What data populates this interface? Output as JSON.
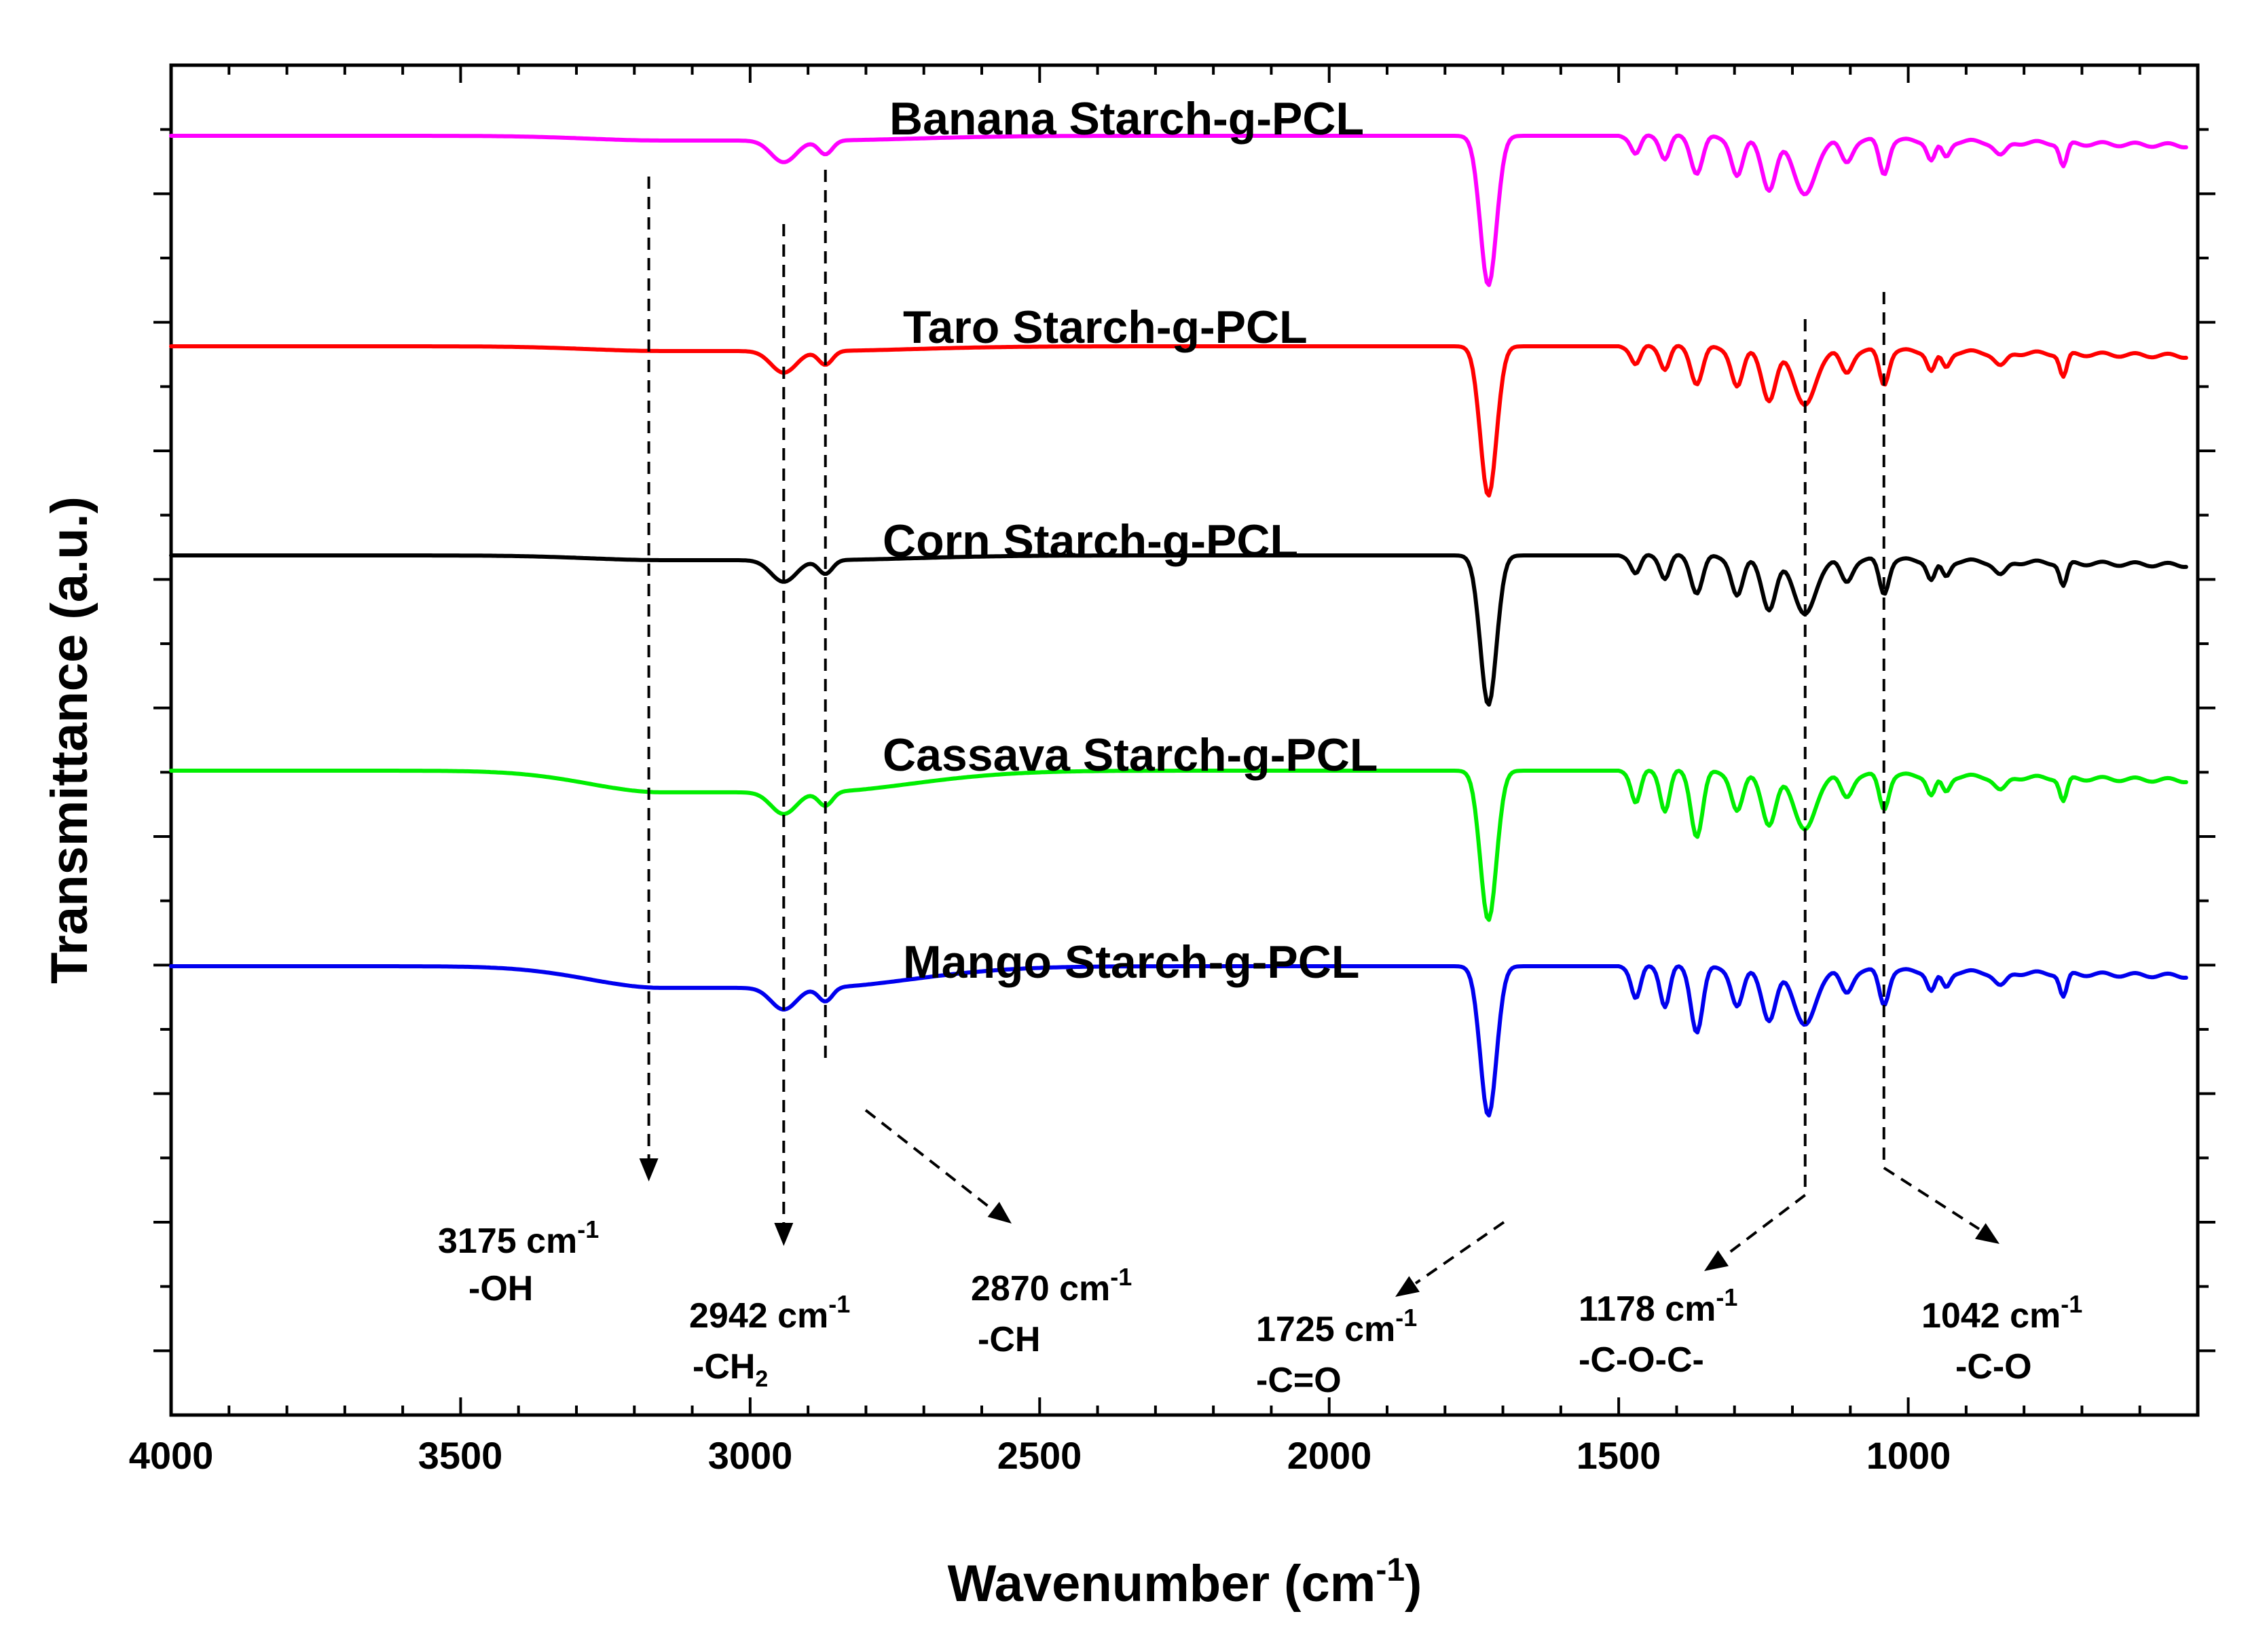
{
  "chart_data": {
    "type": "line",
    "title": "",
    "xlabel": "Wavenumber (cm",
    "xlabel_sup": "-1",
    "xlabel_close": ")",
    "ylabel": "Transmittance (a.u.)",
    "xlim": [
      4000,
      500
    ],
    "x_reversed": true,
    "y_ticks_labeled": false,
    "xticks": [
      {
        "value": 4000,
        "label": "4000"
      },
      {
        "value": 3500,
        "label": "3500"
      },
      {
        "value": 3000,
        "label": "3000"
      },
      {
        "value": 2500,
        "label": "2500"
      },
      {
        "value": 2000,
        "label": "2000"
      },
      {
        "value": 1500,
        "label": "1500"
      },
      {
        "value": 1000,
        "label": "1000"
      }
    ],
    "series": [
      {
        "name": "Banana Starch-g-PCL",
        "color": "#ff00ff",
        "offset": 0
      },
      {
        "name": "Taro Starch-g-PCL",
        "color": "#ff0000",
        "offset": 1
      },
      {
        "name": "Corn Starch-g-PCL",
        "color": "#000000",
        "offset": 2
      },
      {
        "name": "Cassava Starch-g-PCL",
        "color": "#00ee00",
        "offset": 3
      },
      {
        "name": "Mango Starch-g-PCL",
        "color": "#0000ee",
        "offset": 4
      }
    ],
    "annotations": [
      {
        "wavenumber": 3175,
        "value": "3175 cm",
        "sup": "-1",
        "group": "-OH"
      },
      {
        "wavenumber": 2942,
        "value": "2942 cm",
        "sup": "-1",
        "group": "-CH",
        "group_sub": "2"
      },
      {
        "wavenumber": 2870,
        "value": "2870 cm",
        "sup": "-1",
        "group": "-CH"
      },
      {
        "wavenumber": 1725,
        "value": "1725 cm",
        "sup": "-1",
        "group": "-C=O"
      },
      {
        "wavenumber": 1178,
        "value": "1178 cm",
        "sup": "-1",
        "group": "-C-O-C-"
      },
      {
        "wavenumber": 1042,
        "value": "1042 cm",
        "sup": "-1",
        "group": "-C-O"
      }
    ]
  }
}
